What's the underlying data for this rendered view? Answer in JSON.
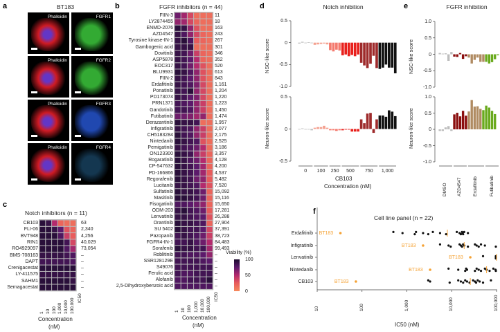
{
  "panel_a": {
    "letter": "a",
    "title": "BT183",
    "tiles": [
      {
        "left": "Phalloidin",
        "right": "FGFR1"
      },
      {
        "left": "Phalloidin",
        "right": "FGFR2"
      },
      {
        "left": "Phalloidin",
        "right": "FGFR3"
      },
      {
        "left": "Phalloidin",
        "right": "FGFR4"
      }
    ]
  },
  "panel_b": {
    "letter": "b",
    "title": "FGFR inhibitors (n = 44)",
    "concentrations": [
      "1",
      "10",
      "100",
      "1,000",
      "10,000",
      "100,000"
    ],
    "ic50_header": "IC50",
    "xlabel": "Concentration",
    "xunit": "(nM)",
    "rows": [
      [
        "FIIN-3",
        "11",
        [
          70,
          55,
          35,
          15,
          15,
          15
        ]
      ],
      [
        "LY2874455",
        "18",
        [
          60,
          55,
          35,
          20,
          15,
          15
        ]
      ],
      [
        "ENMD-2076",
        "163",
        [
          95,
          90,
          60,
          30,
          15,
          15
        ]
      ],
      [
        "AZD4547",
        "243",
        [
          90,
          80,
          60,
          35,
          20,
          15
        ]
      ],
      [
        "Tyrosine kinase-IN-1",
        "267",
        [
          90,
          95,
          80,
          25,
          20,
          15
        ]
      ],
      [
        "Gambogenic acid",
        "301",
        [
          90,
          90,
          90,
          15,
          15,
          15
        ]
      ],
      [
        "Dovitinib",
        "346",
        [
          90,
          85,
          70,
          40,
          20,
          15
        ]
      ],
      [
        "ASP5878",
        "352",
        [
          90,
          85,
          75,
          50,
          20,
          15
        ]
      ],
      [
        "EOC317",
        "520",
        [
          90,
          85,
          70,
          50,
          30,
          15
        ]
      ],
      [
        "BLU9931",
        "613",
        [
          95,
          90,
          80,
          60,
          30,
          15
        ]
      ],
      [
        "FIIN-2",
        "843",
        [
          90,
          85,
          75,
          60,
          30,
          15
        ]
      ],
      [
        "Erdafitinib",
        "1,161",
        [
          90,
          85,
          80,
          65,
          35,
          15
        ]
      ],
      [
        "Ponatinib",
        "1,204",
        [
          90,
          85,
          95,
          60,
          35,
          15
        ]
      ],
      [
        "PD173074",
        "1,220",
        [
          90,
          85,
          75,
          65,
          35,
          15
        ]
      ],
      [
        "PRN1371",
        "1,223",
        [
          85,
          80,
          75,
          60,
          40,
          15
        ]
      ],
      [
        "Gandotinib",
        "1,450",
        [
          85,
          85,
          80,
          60,
          40,
          15
        ]
      ],
      [
        "Futibatinib",
        "1,474",
        [
          70,
          70,
          65,
          55,
          60,
          15
        ]
      ],
      [
        "Derazantinib",
        "1,957",
        [
          95,
          90,
          90,
          85,
          15,
          15
        ]
      ],
      [
        "Infigratinib",
        "2,077",
        [
          90,
          85,
          80,
          60,
          40,
          15
        ]
      ],
      [
        "CH5183284",
        "2,175",
        [
          95,
          85,
          80,
          60,
          40,
          15
        ]
      ],
      [
        "Nintedanib",
        "2,525",
        [
          95,
          90,
          85,
          80,
          30,
          15
        ]
      ],
      [
        "Pemigatinib",
        "3,186",
        [
          90,
          85,
          80,
          70,
          50,
          15
        ]
      ],
      [
        "ON123300",
        "3,357",
        [
          95,
          90,
          85,
          60,
          40,
          20
        ]
      ],
      [
        "Rogaratinib",
        "4,128",
        [
          95,
          90,
          80,
          70,
          50,
          20
        ]
      ],
      [
        "CP-547632",
        "4,200",
        [
          95,
          90,
          85,
          75,
          55,
          20
        ]
      ],
      [
        "PD-166866",
        "4,537",
        [
          95,
          90,
          85,
          75,
          55,
          25
        ]
      ],
      [
        "Regorafenib",
        "5,482",
        [
          95,
          90,
          85,
          70,
          60,
          25
        ]
      ],
      [
        "Lucitanib",
        "7,520",
        [
          90,
          90,
          85,
          80,
          50,
          30
        ]
      ],
      [
        "Sulfatinib",
        "15,092",
        [
          95,
          90,
          90,
          85,
          70,
          20
        ]
      ],
      [
        "Masitinib",
        "15,116",
        [
          95,
          95,
          90,
          85,
          70,
          20
        ]
      ],
      [
        "Fisogatinib",
        "15,650",
        [
          80,
          80,
          75,
          70,
          60,
          20
        ]
      ],
      [
        "ODM-203",
        "17,281",
        [
          90,
          95,
          85,
          80,
          70,
          25
        ]
      ],
      [
        "Lenvatinib",
        "26,288",
        [
          90,
          90,
          85,
          80,
          75,
          30
        ]
      ],
      [
        "Orantinib",
        "27,904",
        [
          95,
          90,
          90,
          85,
          80,
          20
        ]
      ],
      [
        "SU 5402",
        "37,391",
        [
          95,
          90,
          85,
          85,
          75,
          35
        ]
      ],
      [
        "Pazopanib",
        "38,723",
        [
          85,
          90,
          85,
          80,
          70,
          40
        ]
      ],
      [
        "FGFR4-IN-1",
        "84,483",
        [
          85,
          85,
          90,
          80,
          70,
          50
        ]
      ],
      [
        "Sorafenib",
        "99,493",
        [
          95,
          90,
          90,
          85,
          85,
          55
        ]
      ],
      [
        "Roblitinib",
        "–",
        [
          85,
          85,
          80,
          80,
          75,
          60
        ]
      ],
      [
        "SSR128129E",
        "–",
        [
          85,
          85,
          85,
          85,
          80,
          75
        ]
      ],
      [
        "S49076",
        "–",
        [
          85,
          85,
          85,
          85,
          85,
          85
        ]
      ],
      [
        "Ferulic acid",
        "–",
        [
          85,
          80,
          80,
          85,
          85,
          85
        ]
      ],
      [
        "Alofanib",
        "–",
        [
          80,
          80,
          85,
          85,
          85,
          95
        ]
      ],
      [
        "2,5-Dihydroxybenzoic acid",
        "–",
        [
          80,
          80,
          80,
          80,
          80,
          80
        ]
      ]
    ],
    "colorbar": {
      "title": "Viability (%)",
      "ticks": [
        "100",
        "50",
        "0"
      ]
    }
  },
  "panel_c": {
    "letter": "c",
    "title": "Notch inhibitors (n = 11)",
    "concentrations": [
      "1",
      "10",
      "100",
      "1,000",
      "10,000",
      "100,000"
    ],
    "ic50_header": "IC50",
    "xlabel": "Concentration",
    "xunit": "(nM)",
    "rows": [
      [
        "CB103",
        "63",
        [
          95,
          90,
          50,
          20,
          15,
          15
        ]
      ],
      [
        "FLI-06",
        "2,340",
        [
          95,
          95,
          90,
          75,
          30,
          20
        ]
      ],
      [
        "BVT948",
        "4,256",
        [
          95,
          95,
          95,
          80,
          40,
          25
        ]
      ],
      [
        "RIN1",
        "40,029",
        [
          95,
          95,
          95,
          95,
          85,
          35
        ]
      ],
      [
        "RO4929097",
        "73,054",
        [
          95,
          95,
          95,
          95,
          80,
          55
        ]
      ],
      [
        "BMS-708163",
        "–",
        [
          90,
          90,
          90,
          90,
          85,
          80
        ]
      ],
      [
        "DAPT",
        "–",
        [
          85,
          85,
          85,
          85,
          85,
          80
        ]
      ],
      [
        "Crenigacestat",
        "–",
        [
          95,
          95,
          95,
          95,
          95,
          95
        ]
      ],
      [
        "LY-411575",
        "–",
        [
          90,
          90,
          90,
          90,
          90,
          90
        ]
      ],
      [
        "SAHM1",
        "–",
        [
          95,
          95,
          95,
          95,
          95,
          90
        ]
      ],
      [
        "Semagacestat",
        "–",
        [
          95,
          95,
          95,
          95,
          95,
          95
        ]
      ]
    ]
  },
  "colors": {
    "grey": "#bdbdbd",
    "salmon": "#f4a190",
    "lightred": "#f47a6e",
    "red": "#e8201c",
    "darkred": "#9e2a2b",
    "black": "#111111",
    "crimson": "#8b0f0f",
    "tan": "#b08b62",
    "green": "#6aaa1e",
    "orange": "#f5a234"
  },
  "chart_data": [
    {
      "type": "bar",
      "id": "d",
      "letter": "d",
      "title": "Notch inhibition",
      "xlabel": "CB103",
      "xunit": "Concentration (nM)",
      "groups": [
        {
          "label": "0",
          "color": "grey"
        },
        {
          "label": "100",
          "color": "salmon"
        },
        {
          "label": "250",
          "color": "lightred"
        },
        {
          "label": "500",
          "color": "red"
        },
        {
          "label": "750",
          "color": "darkred"
        },
        {
          "label": "1,000",
          "color": "black"
        }
      ],
      "panels": [
        {
          "ylabel": "NSC-like score",
          "ylim": [
            -1.0,
            0.5
          ],
          "ticks": [
            "0.5",
            "0",
            "-0.5",
            "-1.0"
          ],
          "tickvals": [
            0.5,
            0,
            -0.5,
            -1.0
          ],
          "values": [
            [
              -0.02,
              0.02,
              -0.01,
              0.01,
              0
            ],
            [
              -0.05,
              -0.04,
              -0.03,
              -0.02,
              -0.04
            ],
            [
              -0.17,
              -0.2,
              -0.16,
              -0.18
            ],
            [
              -0.29,
              -0.27,
              -0.31,
              -0.28,
              -0.31,
              -0.27
            ],
            [
              -0.46,
              -0.52,
              -0.58,
              -0.48,
              -0.3,
              -0.58
            ],
            [
              -0.6,
              -0.57,
              -0.5,
              -0.57,
              -0.57,
              -0.7
            ]
          ]
        },
        {
          "ylabel": "Neuron-like score",
          "ylim": [
            -0.5,
            0.5
          ],
          "ticks": [
            "0.5",
            "0",
            "-0.5"
          ],
          "tickvals": [
            0.5,
            0,
            -0.5
          ],
          "values": [
            [
              0,
              0.01,
              0,
              0,
              -0.02
            ],
            [
              0.02,
              0.03,
              0.03,
              0.05,
              0.02
            ],
            [
              -0.02,
              -0.02,
              -0.03,
              -0.02
            ],
            [
              -0.02,
              -0.01,
              -0.01,
              -0.04,
              -0.04,
              -0.04
            ],
            [
              0.15,
              0.09,
              0.24,
              0.25,
              -0.06,
              0.15
            ],
            [
              0.21,
              0.21,
              0.19,
              0.29,
              0.27,
              0.2
            ]
          ]
        }
      ]
    },
    {
      "type": "bar",
      "id": "e",
      "letter": "e",
      "title": "FGFR inhibition",
      "groups": [
        {
          "label": "DMSO",
          "color": "grey"
        },
        {
          "label": "AZD4547",
          "color": "crimson"
        },
        {
          "label": "Erdafitinib",
          "color": "tan"
        },
        {
          "label": "Futibatinib",
          "color": "green"
        }
      ],
      "panels": [
        {
          "ylabel": "NSC-like score",
          "ylim": [
            -1.0,
            1.0
          ],
          "ticks": [
            "1.0",
            "0.5",
            "0",
            "-0.5",
            "-1.0"
          ],
          "tickvals": [
            1,
            0.5,
            0,
            -0.5,
            -1
          ],
          "values": [
            [
              0.04,
              0.02,
              0.03,
              -0.2,
              0.07
            ],
            [
              -0.07,
              -0.08,
              0.04,
              -0.14,
              -0.06
            ],
            [
              -0.1,
              -0.28,
              -0.17,
              -0.1,
              -0.23,
              -0.23
            ],
            [
              -0.23,
              -0.28,
              -0.24,
              -0.15,
              -0.03
            ]
          ]
        },
        {
          "ylabel": "Neuron-like score",
          "ylim": [
            -1.0,
            1.0
          ],
          "ticks": [
            "1.0",
            "0.5",
            "0",
            "-0.5",
            "-1.0"
          ],
          "tickvals": [
            1,
            0.5,
            0,
            -0.5,
            -1
          ],
          "values": [
            [
              -0.05,
              -0.05,
              0.06,
              0.1,
              -0.05
            ],
            [
              0.46,
              0.51,
              0.4,
              0.57,
              0.42
            ],
            [
              0.55,
              0.9,
              0.7,
              0.71,
              0.63
            ],
            [
              0.59,
              0.73,
              0.67,
              0.57,
              0.47
            ]
          ]
        }
      ]
    },
    {
      "type": "scatter",
      "id": "f",
      "letter": "f",
      "title": "Cell line panel (n = 22)",
      "xlabel": "IC50 (nM)",
      "xscale": "log",
      "xlim": [
        10,
        100000
      ],
      "xticks": [
        "10",
        "100",
        "1,000",
        "10,000",
        "100,000"
      ],
      "highlight_label": "BT183",
      "rows": [
        {
          "name": "Erdafitinib",
          "bt183": 33,
          "median": 8000,
          "others": [
            500,
            800,
            1500,
            1600,
            2300,
            3000,
            3800,
            5500,
            7500,
            13000,
            15000,
            16000,
            17000,
            17500,
            18000,
            19000,
            23000
          ]
        },
        {
          "name": "Infigratinib",
          "bt183": 2300,
          "median": 19000,
          "others": [
            5500,
            8500,
            9500,
            15000,
            16000,
            17000,
            18000,
            19000,
            23000,
            33000,
            36000,
            40000,
            45000,
            55000,
            100000
          ]
        },
        {
          "name": "Lenvatinib",
          "bt183": 26000,
          "median": 100000,
          "others": [
            50000,
            100000,
            100000,
            100000,
            100000
          ]
        },
        {
          "name": "Nintedanib",
          "bt183": 3300,
          "median": 60000,
          "others": [
            8500,
            14000,
            20000,
            21000,
            22000,
            33000,
            36000,
            40000,
            45000,
            55000,
            60000,
            70000,
            85000,
            95000,
            100000
          ]
        },
        {
          "name": "CB103",
          "bt183": 73,
          "median": 26000,
          "others": [
            3000,
            3300,
            9000,
            14000,
            16000,
            18000,
            20000,
            22000,
            25000,
            30000,
            33000,
            35000,
            38000,
            42000,
            50000,
            75000
          ]
        }
      ]
    }
  ]
}
